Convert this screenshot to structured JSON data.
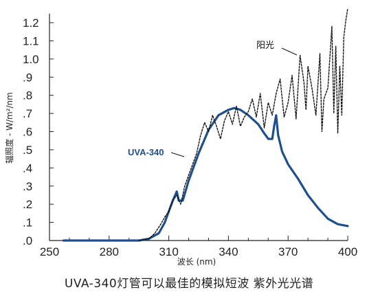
{
  "caption": "UVA-340灯管可以最佳的模拟短波 紫外光光谱",
  "chart_data": {
    "type": "line",
    "title": "",
    "xlabel": "波长 (nm)",
    "ylabel": "辐照度 - W/m²/nm",
    "xlim": [
      250,
      400
    ],
    "ylim": [
      0,
      1.25
    ],
    "x_ticks": [
      "250",
      "280",
      "310",
      "340",
      "370",
      "400"
    ],
    "y_ticks": [
      ".0",
      ".1",
      ".2",
      ".3",
      ".4",
      ".5",
      ".6",
      ".7",
      ".8",
      ".9",
      "1.0",
      "1.1",
      "1.2"
    ],
    "grid": false,
    "annotations": [
      "阳光",
      "UVA-340"
    ],
    "series": [
      {
        "name": "UVA-340",
        "style": "solid",
        "color": "#1d4f8f",
        "x": [
          257,
          270,
          285,
          295,
          300,
          305,
          308,
          310,
          312,
          314,
          315,
          317,
          320,
          325,
          330,
          335,
          340,
          343,
          346,
          350,
          355,
          358,
          360,
          362,
          363,
          364,
          365,
          367,
          370,
          375,
          380,
          385,
          390,
          395,
          400
        ],
        "y": [
          0.0,
          0.0,
          0.0,
          0.0,
          0.01,
          0.04,
          0.1,
          0.16,
          0.22,
          0.27,
          0.22,
          0.22,
          0.33,
          0.48,
          0.61,
          0.69,
          0.72,
          0.73,
          0.72,
          0.69,
          0.64,
          0.59,
          0.56,
          0.56,
          0.63,
          0.69,
          0.58,
          0.49,
          0.42,
          0.34,
          0.25,
          0.18,
          0.12,
          0.09,
          0.08
        ]
      },
      {
        "name": "阳光",
        "style": "dashed",
        "color": "#111111",
        "x": [
          295,
          300,
          303,
          306,
          308,
          310,
          312,
          314,
          316,
          318,
          320,
          322,
          324,
          326,
          328,
          330,
          332,
          334,
          336,
          338,
          340,
          342,
          344,
          346,
          348,
          350,
          352,
          354,
          356,
          358,
          360,
          362,
          364,
          366,
          368,
          370,
          372,
          374,
          376,
          378,
          379,
          380,
          382,
          384,
          386,
          387,
          388,
          390,
          392,
          393,
          394,
          395,
          396,
          397,
          398,
          399,
          400
        ],
        "y": [
          0.0,
          0.01,
          0.04,
          0.09,
          0.13,
          0.16,
          0.22,
          0.25,
          0.2,
          0.3,
          0.36,
          0.42,
          0.48,
          0.58,
          0.65,
          0.6,
          0.69,
          0.63,
          0.56,
          0.66,
          0.71,
          0.64,
          0.74,
          0.63,
          0.68,
          0.71,
          0.78,
          0.68,
          0.81,
          0.62,
          0.76,
          0.69,
          0.81,
          0.89,
          0.68,
          0.76,
          0.91,
          0.67,
          1.02,
          0.87,
          0.72,
          0.96,
          0.84,
          0.69,
          1.03,
          0.6,
          0.78,
          0.84,
          1.18,
          0.7,
          1.07,
          0.59,
          0.96,
          0.69,
          1.12,
          1.21,
          1.28
        ]
      }
    ]
  }
}
